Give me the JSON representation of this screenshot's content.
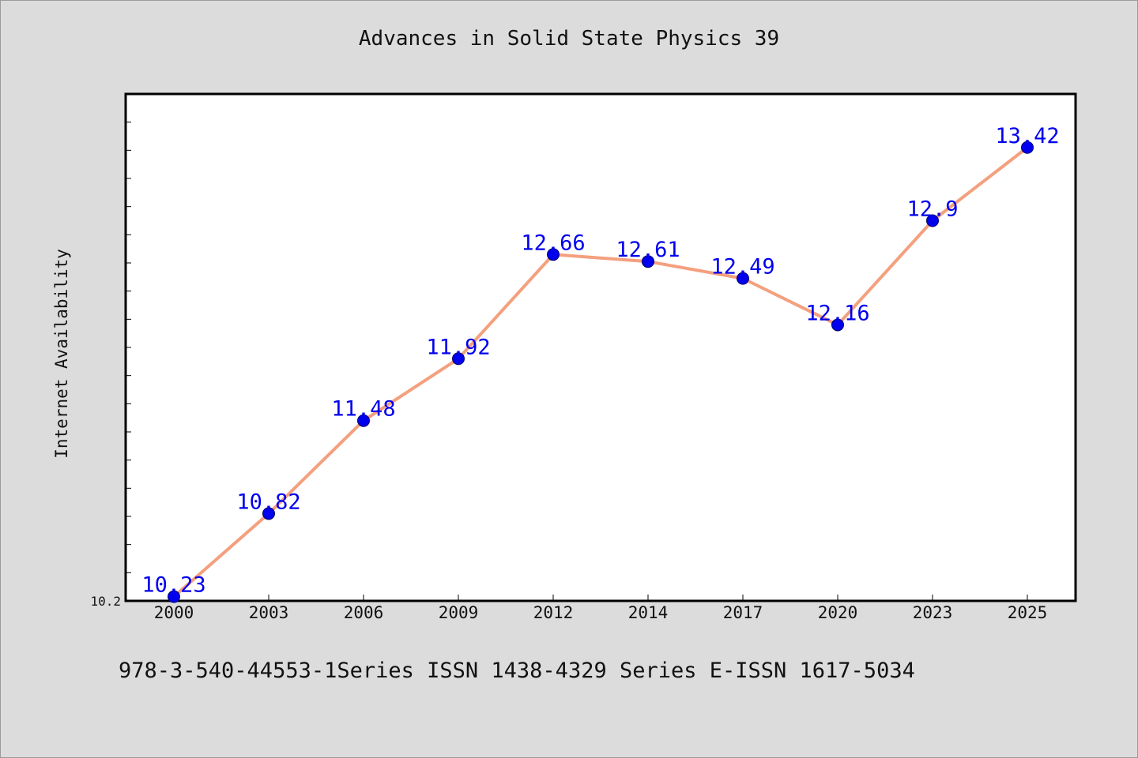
{
  "chart_data": {
    "type": "line",
    "title": "Advances in Solid State Physics 39",
    "ylabel": "Internet Availability",
    "xlabel": "",
    "categories": [
      "2000",
      "2003",
      "2006",
      "2009",
      "2012",
      "2014",
      "2017",
      "2020",
      "2023",
      "2025"
    ],
    "series": [
      {
        "values": [
          10.23,
          10.82,
          11.48,
          11.92,
          12.66,
          12.61,
          12.49,
          12.16,
          12.9,
          13.42
        ],
        "data_labels": [
          "10.23",
          "10.82",
          "11.48",
          "11.92",
          "12.66",
          "12.61",
          "12.49",
          "12.16",
          "12.9",
          "13.42"
        ]
      }
    ],
    "ylim": [
      10.2,
      13.8
    ],
    "y_tick_labels": [
      "10.2"
    ],
    "grid": false,
    "line_color": "#f4a07e",
    "marker_color": "#0000ee",
    "label_color": "#0000ee"
  },
  "footer": {
    "text": "978-3-540-44553-1Series ISSN 1438-4329 Series E-ISSN 1617-5034"
  }
}
